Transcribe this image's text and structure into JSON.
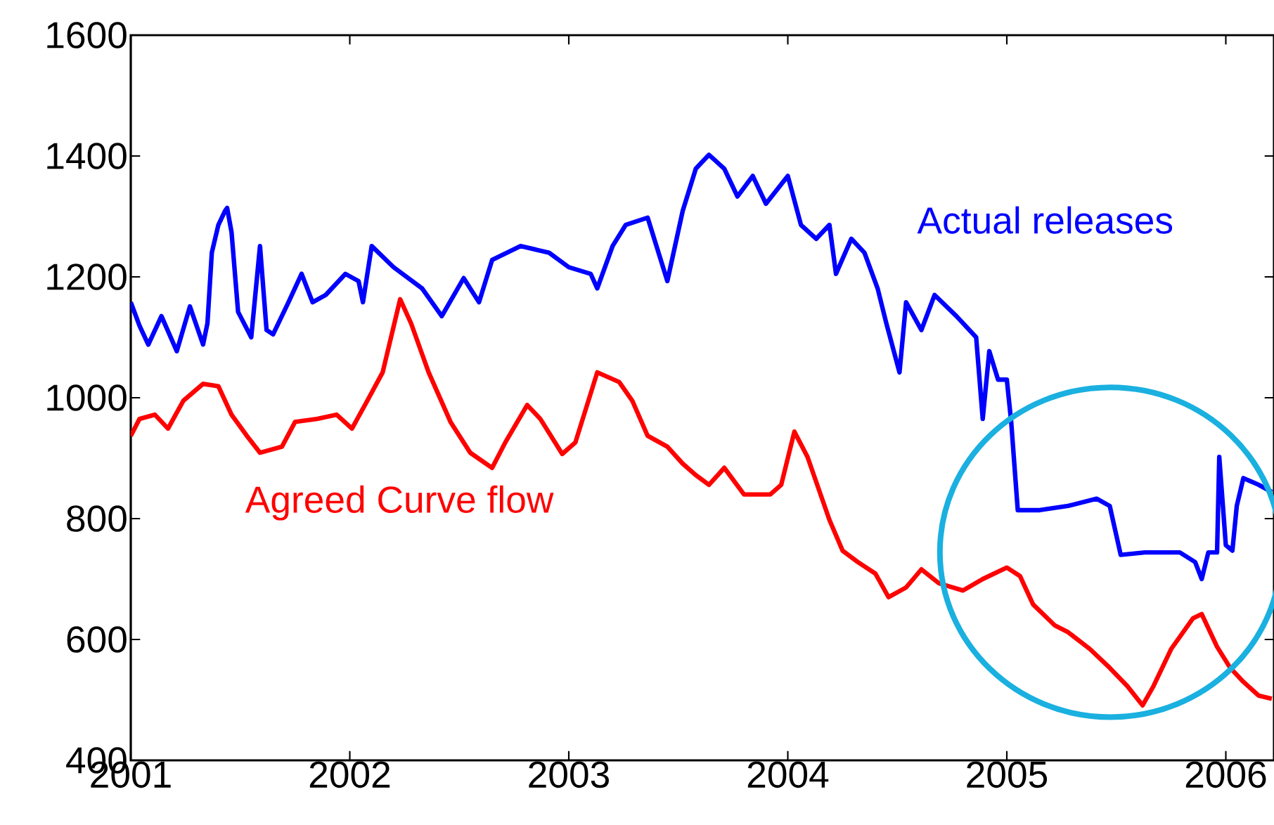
{
  "chart_data": {
    "type": "line",
    "xlim": [
      2001,
      2006.22
    ],
    "ylim": [
      400,
      1600
    ],
    "xticks": [
      2001,
      2002,
      2003,
      2004,
      2005,
      2006
    ],
    "yticks": [
      400,
      600,
      800,
      1000,
      1200,
      1400,
      1600
    ],
    "grid": false,
    "legend": false,
    "marker": "none",
    "line_style": "solid",
    "series": [
      {
        "name": "Actual releases",
        "color": "#0000ff",
        "x": [
          2001.0,
          2001.04,
          2001.08,
          2001.14,
          2001.21,
          2001.27,
          2001.33,
          2001.35,
          2001.37,
          2001.4,
          2001.43,
          2001.44,
          2001.46,
          2001.49,
          2001.55,
          2001.59,
          2001.62,
          2001.65,
          2001.72,
          2001.78,
          2001.83,
          2001.89,
          2001.98,
          2002.04,
          2002.06,
          2002.1,
          2002.2,
          2002.33,
          2002.42,
          2002.52,
          2002.59,
          2002.65,
          2002.78,
          2002.91,
          2003.0,
          2003.1,
          2003.13,
          2003.2,
          2003.26,
          2003.36,
          2003.45,
          2003.52,
          2003.58,
          2003.64,
          2003.71,
          2003.77,
          2003.84,
          2003.9,
          2004.0,
          2004.06,
          2004.13,
          2004.19,
          2004.22,
          2004.29,
          2004.35,
          2004.41,
          2004.45,
          2004.51,
          2004.54,
          2004.61,
          2004.67,
          2004.77,
          2004.86,
          2004.89,
          2004.92,
          2004.96,
          2005.0,
          2005.02,
          2005.05,
          2005.15,
          2005.28,
          2005.41,
          2005.47,
          2005.52,
          2005.63,
          2005.79,
          2005.86,
          2005.89,
          2005.92,
          2005.96,
          2005.97,
          2006.0,
          2006.03,
          2006.05,
          2006.08,
          2006.15,
          2006.21
        ],
        "values": [
          1158,
          1119,
          1088,
          1135,
          1077,
          1151,
          1088,
          1123,
          1240,
          1286,
          1309,
          1314,
          1274,
          1142,
          1100,
          1251,
          1112,
          1105,
          1158,
          1205,
          1158,
          1170,
          1205,
          1193,
          1158,
          1251,
          1216,
          1181,
          1135,
          1198,
          1158,
          1228,
          1251,
          1240,
          1216,
          1205,
          1181,
          1251,
          1286,
          1298,
          1193,
          1309,
          1379,
          1402,
          1379,
          1333,
          1367,
          1321,
          1367,
          1286,
          1263,
          1286,
          1205,
          1263,
          1240,
          1181,
          1123,
          1042,
          1158,
          1112,
          1170,
          1135,
          1100,
          965,
          1077,
          1030,
          1030,
          960,
          814,
          814,
          821,
          833,
          821,
          740,
          744,
          744,
          728,
          700,
          744,
          744,
          902,
          756,
          747,
          821,
          867,
          856,
          844
        ]
      },
      {
        "name": "Agreed Curve flow",
        "color": "#ff0000",
        "x": [
          2001.0,
          2001.04,
          2001.11,
          2001.17,
          2001.24,
          2001.33,
          2001.4,
          2001.46,
          2001.53,
          2001.59,
          2001.69,
          2001.75,
          2001.85,
          2001.94,
          2002.01,
          2002.08,
          2002.15,
          2002.23,
          2002.28,
          2002.36,
          2002.46,
          2002.55,
          2002.65,
          2002.71,
          2002.81,
          2002.87,
          2002.97,
          2003.03,
          2003.13,
          2003.23,
          2003.29,
          2003.36,
          2003.45,
          2003.52,
          2003.58,
          2003.64,
          2003.71,
          2003.8,
          2003.92,
          2003.97,
          2004.03,
          2004.09,
          2004.19,
          2004.25,
          2004.32,
          2004.4,
          2004.46,
          2004.54,
          2004.61,
          2004.69,
          2004.8,
          2004.89,
          2005.0,
          2005.06,
          2005.12,
          2005.22,
          2005.28,
          2005.38,
          2005.47,
          2005.55,
          2005.62,
          2005.67,
          2005.75,
          2005.85,
          2005.89,
          2005.96,
          2006.02,
          2006.08,
          2006.15,
          2006.21
        ],
        "values": [
          937,
          965,
          972,
          949,
          995,
          1023,
          1019,
          972,
          937,
          909,
          919,
          960,
          965,
          972,
          949,
          995,
          1042,
          1163,
          1123,
          1042,
          960,
          909,
          884,
          926,
          988,
          965,
          907,
          926,
          1042,
          1026,
          995,
          937,
          919,
          891,
          872,
          856,
          884,
          840,
          840,
          856,
          944,
          902,
          798,
          747,
          728,
          709,
          670,
          686,
          716,
          693,
          681,
          700,
          719,
          705,
          658,
          623,
          612,
          584,
          553,
          523,
          491,
          523,
          584,
          635,
          642,
          588,
          553,
          530,
          507,
          502
        ]
      }
    ]
  }
}
